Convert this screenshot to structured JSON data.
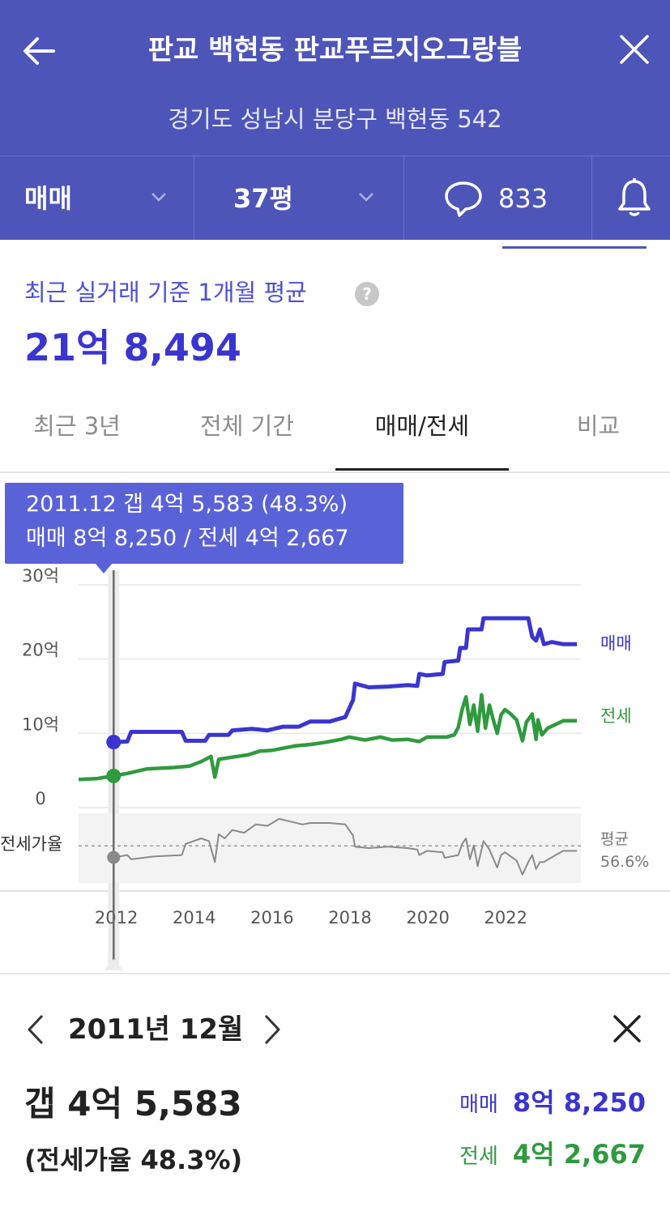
{
  "header": {
    "title": "판교 백현동 판교푸르지오그랑블",
    "address": "경기도 성남시 분당구 백현동 542"
  },
  "filters": {
    "deal_type": "매매",
    "size": "37평",
    "comment_count": "833"
  },
  "summary": {
    "label": "최근 실거래 기준 1개월 평균",
    "help": "?",
    "value": "21억 8,494"
  },
  "tabs": [
    {
      "label": "최근 3년",
      "active": false
    },
    {
      "label": "전체 기간",
      "active": false
    },
    {
      "label": "매매/전세",
      "active": true
    },
    {
      "label": "비교",
      "active": false
    }
  ],
  "tooltip": {
    "line1": "2011.12  갭 4억 5,583 (48.3%)",
    "line2": "매매 8억 8,250 / 전세 4억 2,667"
  },
  "colors": {
    "header_bg": "#4d55b9",
    "sale": "#3a35cf",
    "jeonse": "#2f9a3e",
    "ratio": "#8a8a8a",
    "tooltip_bg": "#5a62d8"
  },
  "chart_data": {
    "type": "line",
    "x_unit": "year",
    "xlim": [
      2011.05,
      2023.95
    ],
    "ylim": [
      0,
      30
    ],
    "y_ticks": [
      {
        "value": 30,
        "label": "30억"
      },
      {
        "value": 20,
        "label": "20억"
      },
      {
        "value": 10,
        "label": "10억"
      },
      {
        "value": 0,
        "label": "0"
      }
    ],
    "x_ticks": [
      {
        "value": 2012,
        "label": "2012"
      },
      {
        "value": 2014,
        "label": "2014"
      },
      {
        "value": 2016,
        "label": "2016"
      },
      {
        "value": 2018,
        "label": "2018"
      },
      {
        "value": 2020,
        "label": "2020"
      },
      {
        "value": 2022,
        "label": "2022"
      }
    ],
    "grid": true,
    "selected": {
      "x": 2011.95,
      "sale": 8.825,
      "jeonse": 4.2667,
      "ratio": 48.3
    },
    "ratio_label": "전세가율",
    "ratio_avg": {
      "label": "평균",
      "value": "56.6%"
    },
    "series": [
      {
        "name": "매매",
        "color": "#3a35cf",
        "points": [
          [
            2011.95,
            8.8
          ],
          [
            2012.3,
            8.9
          ],
          [
            2012.4,
            10.2
          ],
          [
            2013.7,
            10.2
          ],
          [
            2013.8,
            9.0
          ],
          [
            2014.3,
            9.0
          ],
          [
            2014.4,
            9.8
          ],
          [
            2014.9,
            9.8
          ],
          [
            2015.0,
            10.4
          ],
          [
            2015.5,
            10.6
          ],
          [
            2015.9,
            10.4
          ],
          [
            2016.3,
            10.9
          ],
          [
            2016.7,
            10.9
          ],
          [
            2017.0,
            11.6
          ],
          [
            2017.5,
            11.6
          ],
          [
            2017.9,
            12.2
          ],
          [
            2018.1,
            14.5
          ],
          [
            2018.15,
            16.7
          ],
          [
            2018.5,
            16.2
          ],
          [
            2019.0,
            16.3
          ],
          [
            2019.5,
            16.5
          ],
          [
            2019.75,
            16.4
          ],
          [
            2019.8,
            18.0
          ],
          [
            2020.0,
            17.8
          ],
          [
            2020.4,
            18.0
          ],
          [
            2020.45,
            19.6
          ],
          [
            2020.8,
            19.8
          ],
          [
            2020.85,
            21.5
          ],
          [
            2021.0,
            21.5
          ],
          [
            2021.05,
            24.0
          ],
          [
            2021.4,
            24.0
          ],
          [
            2021.45,
            25.5
          ],
          [
            2022.0,
            25.5
          ],
          [
            2022.6,
            25.5
          ],
          [
            2022.7,
            23.0
          ],
          [
            2022.8,
            22.5
          ],
          [
            2022.9,
            24.0
          ],
          [
            2023.0,
            22.0
          ],
          [
            2023.2,
            22.3
          ],
          [
            2023.5,
            22.0
          ],
          [
            2023.85,
            22.0
          ]
        ]
      },
      {
        "name": "전세",
        "color": "#2f9a3e",
        "points": [
          [
            2011.05,
            3.8
          ],
          [
            2011.5,
            3.9
          ],
          [
            2011.95,
            4.27
          ],
          [
            2012.3,
            4.6
          ],
          [
            2012.8,
            5.2
          ],
          [
            2013.5,
            5.4
          ],
          [
            2013.9,
            5.6
          ],
          [
            2014.2,
            6.2
          ],
          [
            2014.45,
            6.9
          ],
          [
            2014.55,
            4.1
          ],
          [
            2014.65,
            6.5
          ],
          [
            2015.0,
            6.8
          ],
          [
            2015.4,
            7.1
          ],
          [
            2015.7,
            7.6
          ],
          [
            2016.0,
            7.7
          ],
          [
            2016.3,
            8.0
          ],
          [
            2016.6,
            8.3
          ],
          [
            2017.0,
            8.5
          ],
          [
            2017.4,
            8.8
          ],
          [
            2017.8,
            9.2
          ],
          [
            2018.0,
            9.5
          ],
          [
            2018.4,
            9.1
          ],
          [
            2018.8,
            9.5
          ],
          [
            2019.1,
            9.1
          ],
          [
            2019.5,
            9.2
          ],
          [
            2019.8,
            8.9
          ],
          [
            2020.0,
            9.5
          ],
          [
            2020.5,
            9.5
          ],
          [
            2020.7,
            9.8
          ],
          [
            2020.8,
            10.8
          ],
          [
            2020.9,
            13.2
          ],
          [
            2021.0,
            14.9
          ],
          [
            2021.1,
            11.2
          ],
          [
            2021.2,
            13.8
          ],
          [
            2021.3,
            10.3
          ],
          [
            2021.4,
            15.2
          ],
          [
            2021.5,
            10.7
          ],
          [
            2021.6,
            13.8
          ],
          [
            2021.7,
            11.8
          ],
          [
            2021.8,
            10.0
          ],
          [
            2021.9,
            12.5
          ],
          [
            2022.0,
            13.2
          ],
          [
            2022.15,
            12.6
          ],
          [
            2022.3,
            11.8
          ],
          [
            2022.45,
            9.0
          ],
          [
            2022.55,
            11.5
          ],
          [
            2022.7,
            12.6
          ],
          [
            2022.8,
            9.2
          ],
          [
            2022.85,
            11.8
          ],
          [
            2022.95,
            9.8
          ],
          [
            2023.1,
            10.7
          ],
          [
            2023.3,
            11.2
          ],
          [
            2023.5,
            11.7
          ],
          [
            2023.85,
            11.7
          ]
        ]
      },
      {
        "name": "전세가율",
        "color": "#8a8a8a",
        "points": [
          [
            2011.95,
            48.3
          ],
          [
            2012.3,
            50.0
          ],
          [
            2012.4,
            47.0
          ],
          [
            2013.0,
            49.0
          ],
          [
            2013.7,
            50.0
          ],
          [
            2013.8,
            58.0
          ],
          [
            2014.2,
            62.0
          ],
          [
            2014.4,
            60.0
          ],
          [
            2014.55,
            45.0
          ],
          [
            2014.65,
            65.0
          ],
          [
            2014.8,
            62.0
          ],
          [
            2015.0,
            68.0
          ],
          [
            2015.3,
            66.0
          ],
          [
            2015.6,
            72.0
          ],
          [
            2015.9,
            71.0
          ],
          [
            2016.2,
            76.0
          ],
          [
            2016.5,
            74.0
          ],
          [
            2016.8,
            72.0
          ],
          [
            2017.0,
            73.0
          ],
          [
            2017.5,
            73.0
          ],
          [
            2017.9,
            72.0
          ],
          [
            2018.1,
            64.0
          ],
          [
            2018.15,
            56.0
          ],
          [
            2018.5,
            55.0
          ],
          [
            2019.0,
            56.0
          ],
          [
            2019.5,
            55.0
          ],
          [
            2019.75,
            54.0
          ],
          [
            2019.8,
            50.0
          ],
          [
            2020.0,
            53.0
          ],
          [
            2020.4,
            52.0
          ],
          [
            2020.45,
            48.0
          ],
          [
            2020.8,
            50.0
          ],
          [
            2020.9,
            58.0
          ],
          [
            2021.0,
            62.0
          ],
          [
            2021.1,
            47.0
          ],
          [
            2021.2,
            57.0
          ],
          [
            2021.3,
            42.0
          ],
          [
            2021.45,
            60.0
          ],
          [
            2021.6,
            54.0
          ],
          [
            2021.8,
            41.0
          ],
          [
            2021.9,
            50.0
          ],
          [
            2022.0,
            52.0
          ],
          [
            2022.3,
            46.0
          ],
          [
            2022.45,
            36.0
          ],
          [
            2022.6,
            45.0
          ],
          [
            2022.7,
            50.0
          ],
          [
            2022.8,
            40.0
          ],
          [
            2022.9,
            45.0
          ],
          [
            2023.0,
            45.0
          ],
          [
            2023.3,
            50.0
          ],
          [
            2023.5,
            53.0
          ],
          [
            2023.85,
            53.0
          ]
        ]
      }
    ]
  },
  "detail": {
    "month": "2011년 12월",
    "gap": "갭 4억 5,583",
    "ratio": "(전세가율 48.3%)",
    "sale_label": "매매",
    "sale_value": "8억 8,250",
    "jeonse_label": "전세",
    "jeonse_value": "4억 2,667"
  }
}
